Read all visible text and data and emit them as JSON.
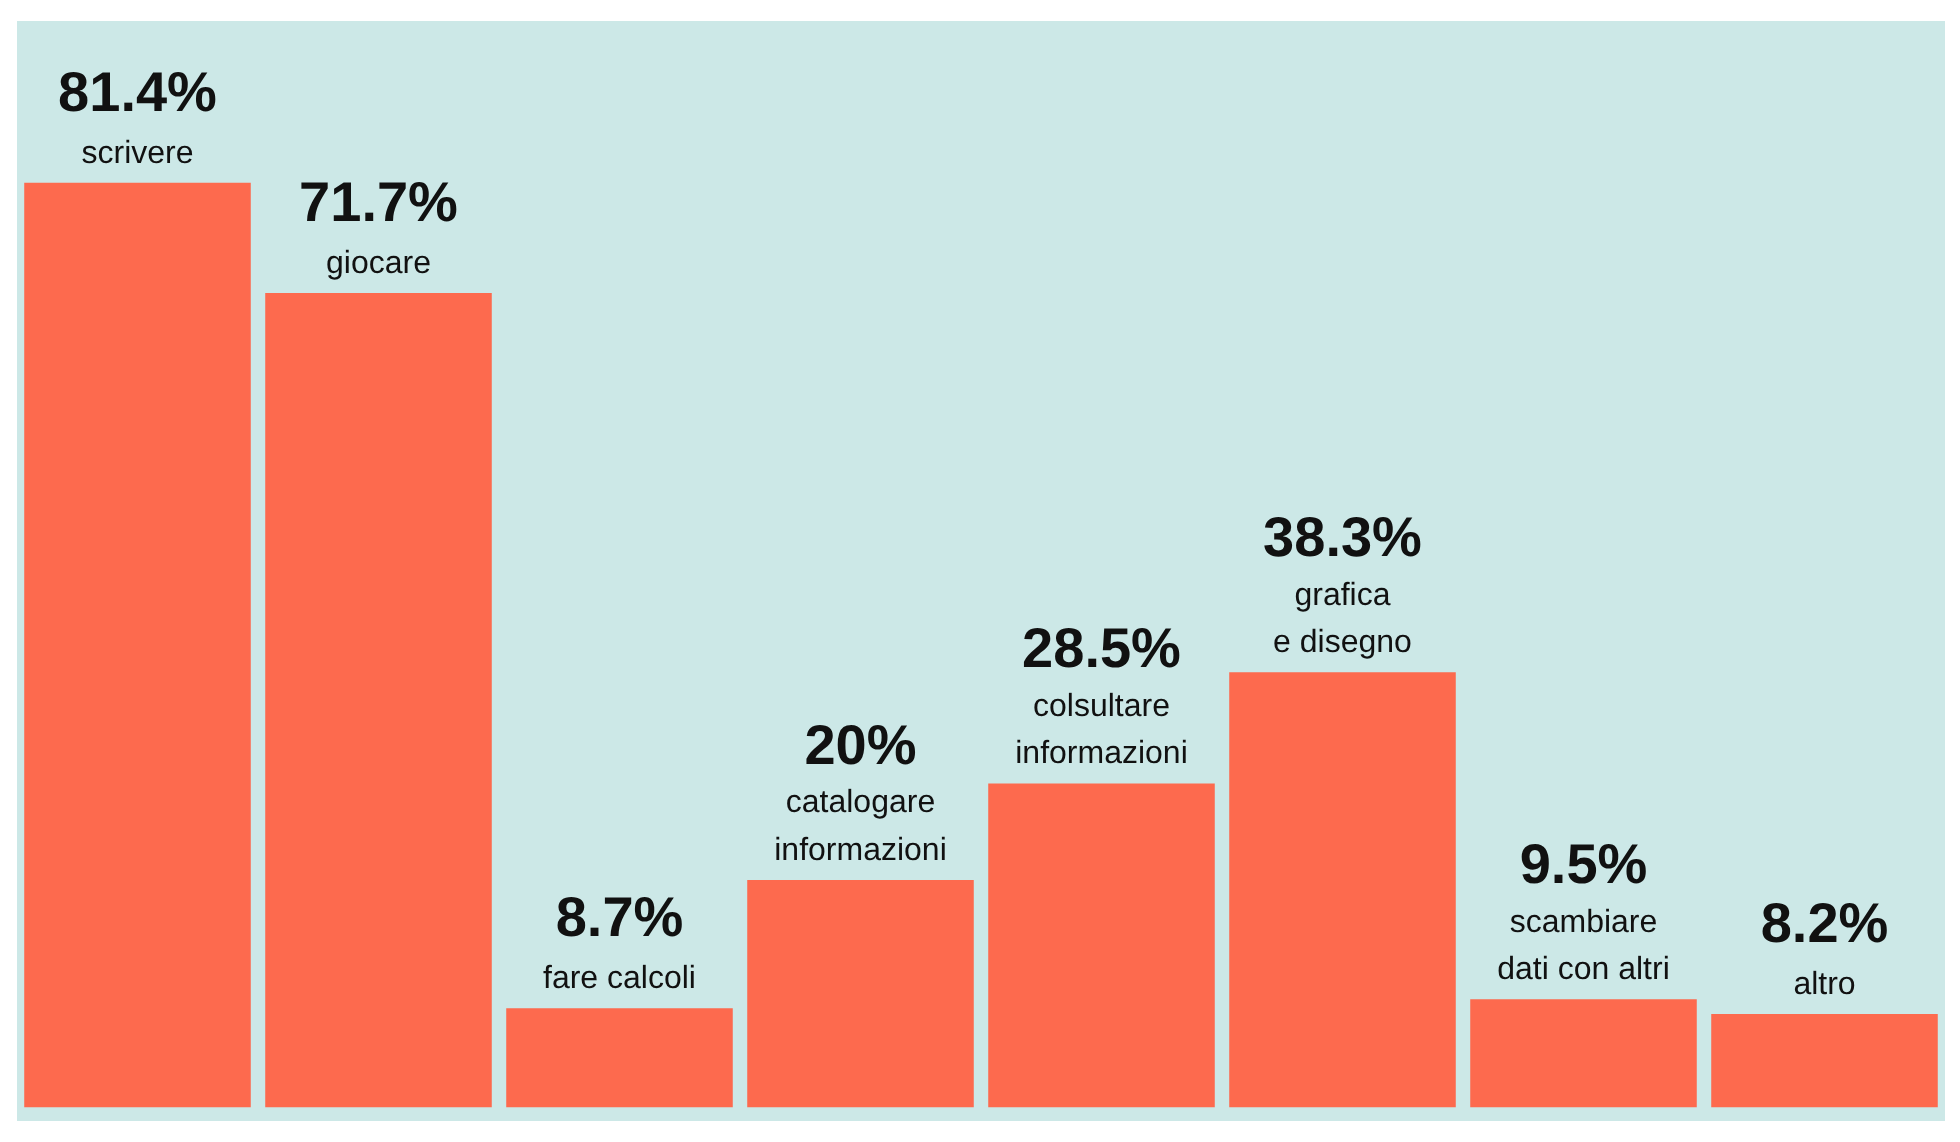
{
  "chart_data": {
    "type": "bar",
    "categories": [
      "scrivere",
      "giocare",
      "fare calcoli",
      "catalogare\ninformazioni",
      "colsultare\ninformazioni",
      "grafica\ne disegno",
      "scambiare\ndati con altri",
      "altro"
    ],
    "values": [
      81.4,
      71.7,
      8.7,
      20,
      28.5,
      38.3,
      9.5,
      8.2
    ],
    "value_labels": [
      "81.4%",
      "71.7%",
      "8.7%",
      "20%",
      "28.5%",
      "38.3%",
      "9.5%",
      "8.2%"
    ],
    "color": "#fd6a4e",
    "grid": false
  }
}
